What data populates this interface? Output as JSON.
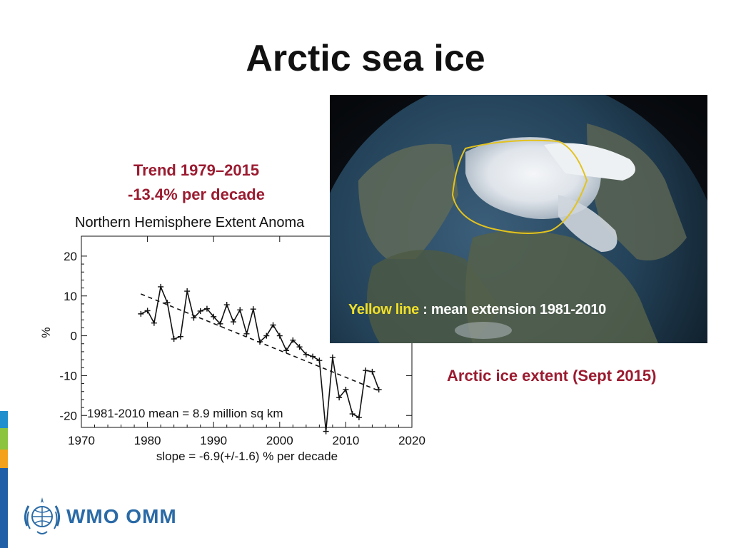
{
  "slide": {
    "title": "Arctic sea ice",
    "trend_line1": "Trend 1979–2015",
    "trend_line2": "-13.4% per decade",
    "photo_caption_yellow": "Yellow line",
    "photo_caption_rest": " : mean extension 1981-2010",
    "extent_caption": "Arctic ice extent (Sept 2015)",
    "logo_text": "WMO OMM"
  },
  "colors": {
    "accent_red": "#9b1b30",
    "yellow_line": "#f1e02a",
    "wmo_blue": "#2a6aa6",
    "sidebar": [
      "#1f8fce",
      "#8cc43f",
      "#f4a21b",
      "#1f5fa8"
    ]
  },
  "chart_data": {
    "type": "line",
    "title": "Northern Hemisphere Extent Anoma",
    "ylabel": "%",
    "xlim": [
      1970,
      2020
    ],
    "ylim": [
      -23,
      25
    ],
    "x_ticks": [
      1970,
      1980,
      1990,
      2000,
      2010,
      2020
    ],
    "y_ticks": [
      20,
      10,
      0,
      -10,
      -20
    ],
    "grid": false,
    "annotation": "1981-2010 mean =    8.9 million sq km",
    "xlabel": "slope =  -6.9(+/-1.6) % per decade",
    "series": [
      {
        "x": [
          1979,
          1980,
          1981,
          1982,
          1983,
          1984,
          1985,
          1986,
          1987,
          1988,
          1989,
          1990,
          1991,
          1992,
          1993,
          1994,
          1995,
          1996,
          1997,
          1998,
          1999,
          2000,
          2001,
          2002,
          2003,
          2004,
          2005,
          2006,
          2007,
          2008,
          2009,
          2010,
          2011,
          2012,
          2013,
          2014,
          2015
        ],
        "y": [
          5.5,
          6.3,
          3.2,
          12.3,
          8.3,
          -0.8,
          -0.2,
          11.2,
          4.5,
          6.2,
          6.8,
          4.8,
          3.0,
          7.8,
          3.5,
          6.5,
          0.5,
          6.7,
          -1.5,
          0.0,
          2.7,
          0.0,
          -3.7,
          -1.1,
          -2.8,
          -4.7,
          -5.2,
          -6.2,
          -24.0,
          -5.4,
          -15.5,
          -13.5,
          -19.6,
          -20.5,
          -8.7,
          -9.0,
          -13.5
        ]
      },
      {
        "name": "trend",
        "x": [
          1979,
          2015
        ],
        "y": [
          10.5,
          -13.8
        ]
      }
    ]
  }
}
